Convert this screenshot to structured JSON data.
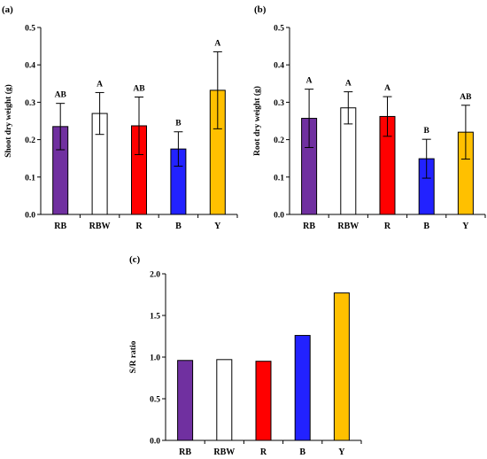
{
  "chart_data": [
    {
      "type": "bar",
      "panel": "(a)",
      "ylabel": "Shoot dry weight (g)",
      "ylim": [
        0,
        0.5
      ],
      "yticks": [
        "0.0",
        "0.1",
        "0.2",
        "0.3",
        "0.4",
        "0.5"
      ],
      "categories": [
        "RB",
        "RBW",
        "R",
        "B",
        "Y"
      ],
      "values": [
        0.235,
        0.27,
        0.237,
        0.175,
        0.332
      ],
      "errors": [
        0.062,
        0.056,
        0.077,
        0.046,
        0.103
      ],
      "significance": [
        "AB",
        "A",
        "AB",
        "B",
        "A"
      ]
    },
    {
      "type": "bar",
      "panel": "(b)",
      "ylabel": "Root dry weight (g)",
      "ylim": [
        0,
        0.5
      ],
      "yticks": [
        "0.0",
        "0.1",
        "0.2",
        "0.3",
        "0.4",
        "0.5"
      ],
      "categories": [
        "RB",
        "RBW",
        "R",
        "B",
        "Y"
      ],
      "values": [
        0.257,
        0.285,
        0.262,
        0.149,
        0.22
      ],
      "errors": [
        0.078,
        0.043,
        0.053,
        0.052,
        0.072
      ],
      "significance": [
        "A",
        "A",
        "A",
        "B",
        "AB"
      ]
    },
    {
      "type": "bar",
      "panel": "(c)",
      "ylabel": "S/R ratio",
      "ylim": [
        0,
        2.0
      ],
      "yticks": [
        "0.0",
        "0.5",
        "1.0",
        "1.5",
        "2.0"
      ],
      "categories": [
        "RB",
        "RBW",
        "R",
        "B",
        "Y"
      ],
      "values": [
        0.96,
        0.97,
        0.95,
        1.26,
        1.77
      ],
      "errors": [],
      "significance": []
    }
  ],
  "colors": {
    "RB": "#7030a0",
    "RBW": "#ffffff",
    "R": "#ff0000",
    "B": "#2222ff",
    "Y": "#ffc000",
    "axis": "#000000"
  }
}
